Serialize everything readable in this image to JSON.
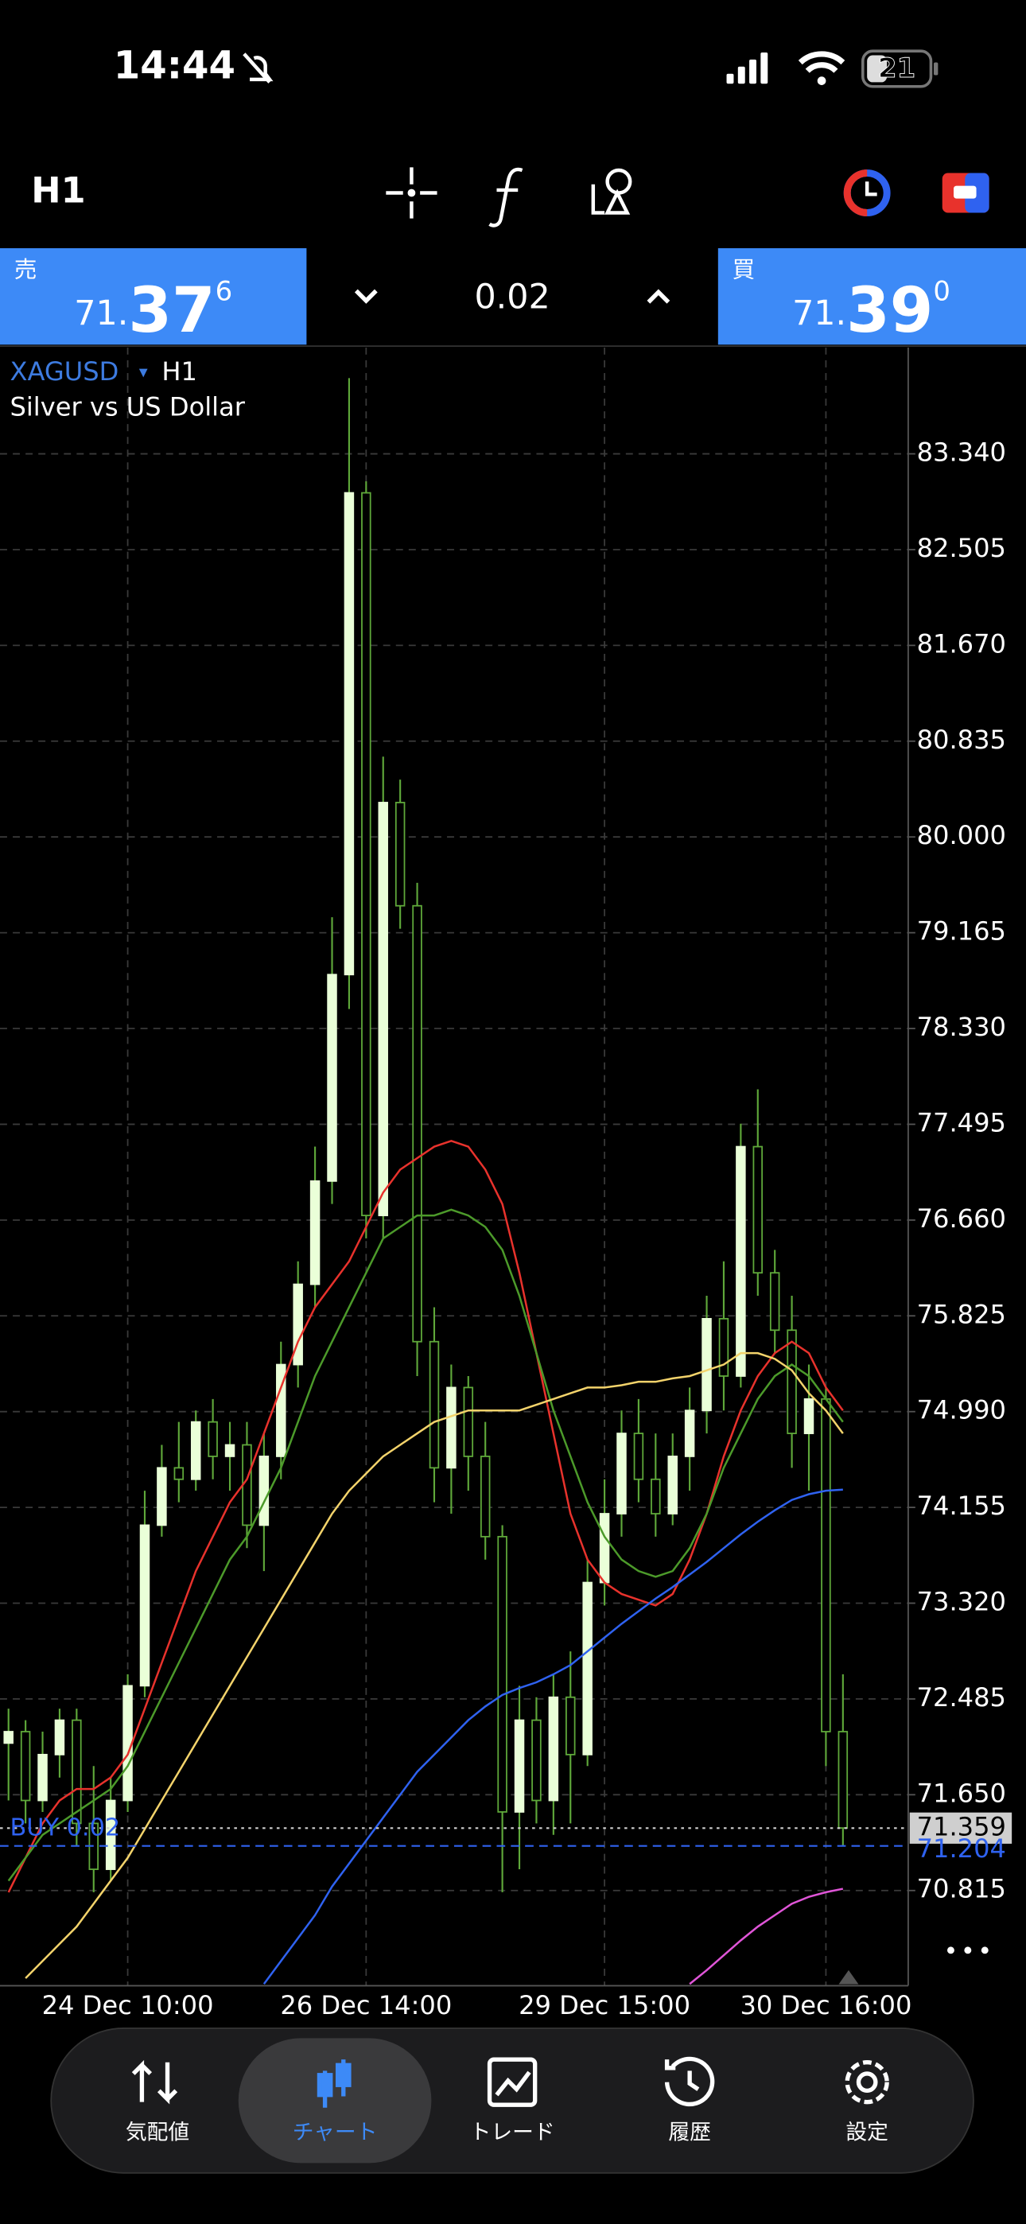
{
  "status_bar": {
    "time": "14:44",
    "battery": "21"
  },
  "toolbar": {
    "timeframe": "H1"
  },
  "trade_panel": {
    "sell": {
      "label": "売",
      "price_prefix": "71.",
      "price_main": "37",
      "price_sup": "6"
    },
    "volume": "0.02",
    "buy": {
      "label": "買",
      "price_prefix": "71.",
      "price_main": "39",
      "price_sup": "0"
    }
  },
  "chart_data": {
    "type": "candlestick",
    "symbol": "XAGUSD",
    "timeframe": "H1",
    "description": "Silver vs US Dollar",
    "categories": [
      null,
      null,
      null,
      null,
      null,
      null,
      null,
      "24 Dec 10:00",
      null,
      null,
      null,
      null,
      null,
      null,
      null,
      null,
      null,
      null,
      null,
      null,
      null,
      "26 Dec 14:00",
      null,
      null,
      null,
      null,
      null,
      null,
      null,
      null,
      null,
      null,
      null,
      null,
      null,
      "29 Dec 15:00",
      null,
      null,
      null,
      null,
      null,
      null,
      null,
      null,
      null,
      null,
      null,
      null,
      "30 Dec 16:00",
      null
    ],
    "open": [
      72.1,
      72.2,
      71.6,
      72.0,
      72.3,
      71.4,
      71.0,
      71.6,
      72.6,
      74.0,
      74.5,
      74.4,
      74.9,
      74.6,
      74.7,
      74.0,
      74.6,
      75.4,
      76.1,
      77.0,
      78.8,
      83.0,
      76.7,
      80.3,
      79.4,
      75.6,
      74.5,
      75.2,
      74.6,
      73.9,
      71.5,
      72.3,
      71.6,
      72.5,
      72.0,
      73.5,
      74.1,
      74.8,
      74.4,
      74.1,
      74.6,
      75.0,
      75.8,
      75.3,
      77.3,
      76.2,
      75.7,
      74.8,
      75.1,
      72.2
    ],
    "high": [
      72.4,
      72.3,
      72.2,
      72.4,
      72.4,
      71.9,
      71.8,
      72.7,
      74.3,
      74.7,
      74.9,
      75.0,
      75.1,
      74.9,
      74.9,
      74.8,
      75.6,
      76.3,
      77.3,
      79.3,
      84.0,
      83.1,
      80.7,
      80.5,
      79.6,
      75.9,
      75.4,
      75.3,
      74.9,
      74.0,
      72.6,
      72.5,
      72.7,
      72.9,
      73.7,
      74.4,
      75.0,
      75.1,
      74.8,
      74.8,
      75.2,
      76.0,
      76.3,
      77.5,
      77.8,
      76.4,
      76.0,
      75.4,
      75.2,
      72.7
    ],
    "low": [
      71.6,
      71.4,
      71.5,
      71.8,
      71.2,
      70.8,
      70.9,
      71.5,
      72.5,
      73.9,
      74.2,
      74.3,
      74.4,
      74.3,
      73.8,
      73.6,
      74.4,
      75.2,
      75.9,
      76.8,
      78.5,
      76.5,
      76.5,
      79.2,
      75.3,
      74.2,
      74.1,
      74.3,
      73.7,
      70.8,
      71.0,
      71.4,
      71.3,
      71.4,
      71.9,
      73.3,
      73.9,
      74.2,
      73.9,
      74.0,
      74.3,
      74.8,
      75.0,
      75.2,
      76.0,
      75.5,
      74.5,
      74.3,
      71.9,
      71.2
    ],
    "close": [
      72.2,
      71.6,
      72.0,
      72.3,
      71.4,
      71.0,
      71.6,
      72.6,
      74.0,
      74.5,
      74.4,
      74.9,
      74.6,
      74.7,
      74.0,
      74.6,
      75.4,
      76.1,
      77.0,
      78.8,
      83.0,
      76.7,
      80.3,
      79.4,
      75.6,
      74.5,
      75.2,
      74.6,
      73.9,
      71.5,
      72.3,
      71.6,
      72.5,
      72.0,
      73.5,
      74.1,
      74.8,
      74.4,
      74.1,
      74.6,
      75.0,
      75.8,
      75.3,
      77.3,
      76.2,
      75.7,
      74.8,
      75.1,
      72.2,
      71.36
    ],
    "up_color": "#eaffd8",
    "down_color": "#000000",
    "wick_color": "#5fa83a",
    "series": [
      {
        "color": "#e8322c",
        "values": [
          70.8,
          71.1,
          71.4,
          71.6,
          71.7,
          71.7,
          71.8,
          72.0,
          72.4,
          72.8,
          73.2,
          73.6,
          73.9,
          74.2,
          74.4,
          74.8,
          75.2,
          75.6,
          75.9,
          76.1,
          76.3,
          76.6,
          76.9,
          77.1,
          77.2,
          77.3,
          77.35,
          77.3,
          77.1,
          76.8,
          76.2,
          75.5,
          74.8,
          74.1,
          73.7,
          73.5,
          73.4,
          73.35,
          73.3,
          73.4,
          73.7,
          74.1,
          74.6,
          75.0,
          75.3,
          75.5,
          75.6,
          75.5,
          75.2,
          75.0
        ]
      },
      {
        "color": "#4c9a2a",
        "values": [
          70.9,
          71.1,
          71.3,
          71.4,
          71.5,
          71.6,
          71.7,
          71.9,
          72.2,
          72.5,
          72.8,
          73.1,
          73.4,
          73.7,
          73.9,
          74.2,
          74.5,
          74.9,
          75.3,
          75.6,
          75.9,
          76.2,
          76.5,
          76.6,
          76.7,
          76.7,
          76.75,
          76.7,
          76.6,
          76.4,
          76.0,
          75.5,
          75.0,
          74.6,
          74.2,
          73.9,
          73.7,
          73.6,
          73.55,
          73.6,
          73.8,
          74.1,
          74.5,
          74.8,
          75.1,
          75.3,
          75.4,
          75.3,
          75.1,
          74.9
        ]
      },
      {
        "color": "#f3d36b",
        "values": [
          null,
          70.05,
          70.2,
          70.35,
          70.5,
          70.7,
          70.9,
          71.1,
          71.35,
          71.6,
          71.85,
          72.1,
          72.35,
          72.6,
          72.85,
          73.1,
          73.35,
          73.6,
          73.85,
          74.1,
          74.3,
          74.45,
          74.6,
          74.7,
          74.8,
          74.9,
          74.95,
          75.0,
          75.0,
          75.0,
          75.0,
          75.05,
          75.1,
          75.15,
          75.2,
          75.2,
          75.22,
          75.25,
          75.25,
          75.28,
          75.3,
          75.35,
          75.4,
          75.5,
          75.5,
          75.45,
          75.35,
          75.15,
          75.0,
          74.8
        ]
      },
      {
        "color": "#2f62f0",
        "values": [
          null,
          null,
          null,
          null,
          null,
          null,
          null,
          null,
          null,
          null,
          null,
          null,
          null,
          null,
          null,
          70.0,
          70.2,
          70.4,
          70.6,
          70.85,
          71.05,
          71.25,
          71.45,
          71.65,
          71.85,
          72.0,
          72.15,
          72.3,
          72.42,
          72.52,
          72.58,
          72.63,
          72.7,
          72.78,
          72.9,
          73.02,
          73.14,
          73.25,
          73.36,
          73.46,
          73.57,
          73.68,
          73.8,
          73.92,
          74.03,
          74.13,
          74.22,
          74.27,
          74.3,
          74.31
        ]
      },
      {
        "color": "#e055d8",
        "values": [
          null,
          null,
          null,
          null,
          null,
          null,
          null,
          null,
          null,
          null,
          null,
          null,
          null,
          null,
          null,
          null,
          null,
          null,
          null,
          null,
          null,
          null,
          null,
          null,
          null,
          null,
          null,
          null,
          null,
          null,
          null,
          null,
          null,
          null,
          null,
          null,
          null,
          null,
          null,
          null,
          70.0,
          70.12,
          70.25,
          70.38,
          70.5,
          70.6,
          70.7,
          70.76,
          70.8,
          70.83
        ]
      }
    ],
    "price_lines": [
      {
        "value": 71.359,
        "color": "#cfcfcf"
      },
      {
        "value": 71.204,
        "color": "#2f62f0",
        "label": "BUY 0.02"
      }
    ],
    "ylim": [
      69.985,
      84.267
    ],
    "yticks": [
      {
        "value": 83.34,
        "label": "83.340"
      },
      82.505,
      {
        "value": 81.67,
        "label": "81.670"
      },
      80.835,
      {
        "value": 80,
        "label": "80.000"
      },
      79.165,
      {
        "value": 78.33,
        "label": "78.330"
      },
      77.495,
      {
        "value": 76.66,
        "label": "76.660"
      },
      75.825,
      {
        "value": 74.99,
        "label": "74.990"
      },
      74.155,
      {
        "value": 73.32,
        "label": "73.320"
      },
      72.485,
      {
        "value": 71.65,
        "label": "71.650"
      },
      70.815
    ],
    "grid": true
  },
  "nav": {
    "items": [
      "気配値",
      "チャート",
      "トレード",
      "履歴",
      "設定"
    ]
  }
}
